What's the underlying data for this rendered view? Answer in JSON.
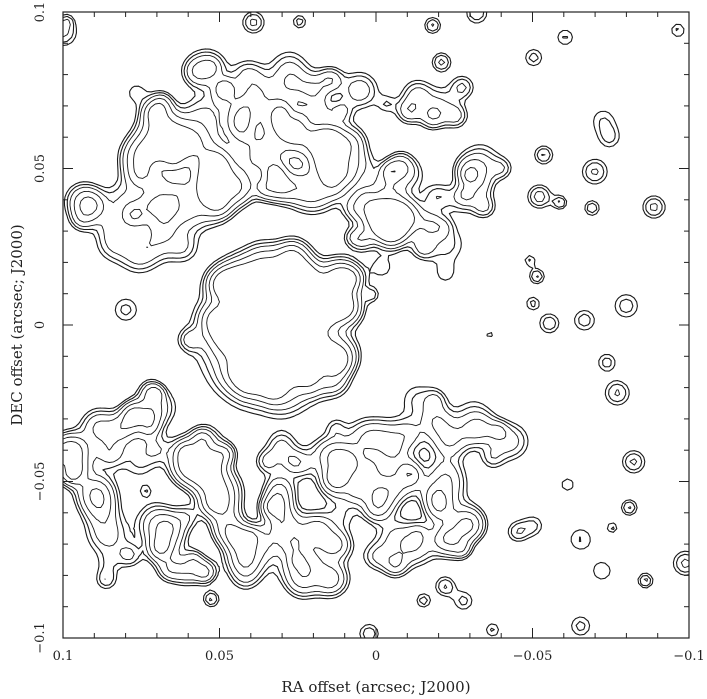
{
  "chart_data": {
    "type": "contour",
    "xlabel": "RA offset (arcsec; J2000)",
    "ylabel": "DEC offset (arcsec; J2000)",
    "xlim": [
      0.1,
      -0.1
    ],
    "ylim": [
      -0.1,
      0.1
    ],
    "x_reversed": true,
    "x_ticks": [
      0.1,
      0.05,
      0,
      -0.05,
      -0.1
    ],
    "x_tick_labels": [
      "0.1",
      "0.05",
      "0",
      "−0.05",
      "−0.1"
    ],
    "y_ticks": [
      -0.1,
      -0.05,
      0,
      0.05,
      0.1
    ],
    "y_tick_labels": [
      "−0.1",
      "−0.05",
      "0",
      "0.05",
      "0.1"
    ],
    "grid": false,
    "line_color": "#1a1a1a",
    "structure": {
      "central_source_center": [
        0.03,
        0.0
      ],
      "central_source_radius": 0.025,
      "clumpy_ring_inner_radius": 0.045,
      "clumpy_ring_outer_radius": 0.09,
      "ring_lobes": [
        "north",
        "south"
      ]
    }
  }
}
